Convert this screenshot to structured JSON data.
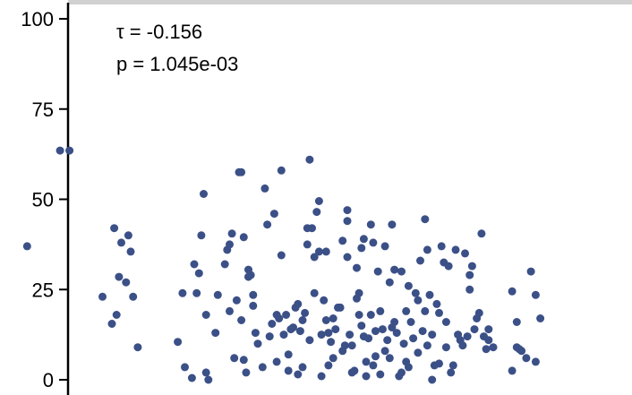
{
  "chart_data": {
    "type": "scatter",
    "title": "",
    "xlabel": "",
    "ylabel": "",
    "ylim": [
      0,
      100
    ],
    "yticks": [
      0,
      25,
      50,
      75,
      100
    ],
    "grid": false,
    "point_color": "#3b5087",
    "annotations": [
      "τ = -0.156",
      "p = 1.045e-03"
    ],
    "points": [
      [
        5,
        37
      ],
      [
        12,
        63.5
      ],
      [
        14,
        63.5
      ],
      [
        21,
        23
      ],
      [
        23,
        15.5
      ],
      [
        23.5,
        42
      ],
      [
        24,
        18
      ],
      [
        24.5,
        28.5
      ],
      [
        25,
        38
      ],
      [
        26,
        27
      ],
      [
        26.5,
        40
      ],
      [
        27,
        35.5
      ],
      [
        27.5,
        23
      ],
      [
        28.5,
        9
      ],
      [
        37,
        10.5
      ],
      [
        38,
        24
      ],
      [
        38.5,
        3.5
      ],
      [
        40,
        0.5
      ],
      [
        40.5,
        32
      ],
      [
        41,
        24
      ],
      [
        41.5,
        29.5
      ],
      [
        42,
        40
      ],
      [
        42.5,
        51.5
      ],
      [
        43,
        18
      ],
      [
        43,
        2
      ],
      [
        43.5,
        0
      ],
      [
        45,
        13
      ],
      [
        45.5,
        23.5
      ],
      [
        47,
        32
      ],
      [
        47.5,
        36
      ],
      [
        48,
        37.5
      ],
      [
        48.5,
        40.5
      ],
      [
        48,
        19
      ],
      [
        49,
        6
      ],
      [
        49.5,
        22
      ],
      [
        50,
        57.5
      ],
      [
        50.5,
        57.5
      ],
      [
        50.5,
        16.5
      ],
      [
        51,
        39.5
      ],
      [
        51,
        5.5
      ],
      [
        51.5,
        2
      ],
      [
        52,
        30.5
      ],
      [
        52,
        28.5
      ],
      [
        52.5,
        29
      ],
      [
        53,
        20.5
      ],
      [
        53,
        23.5
      ],
      [
        53.5,
        13
      ],
      [
        54,
        10
      ],
      [
        55,
        3.5
      ],
      [
        55.5,
        53
      ],
      [
        56,
        43
      ],
      [
        56.5,
        12
      ],
      [
        57,
        15.5
      ],
      [
        57.5,
        46
      ],
      [
        58,
        5
      ],
      [
        58,
        18
      ],
      [
        58.5,
        17
      ],
      [
        59,
        34.5
      ],
      [
        59,
        58
      ],
      [
        59.5,
        12.5
      ],
      [
        60,
        18
      ],
      [
        60.5,
        7
      ],
      [
        60.5,
        2.5
      ],
      [
        61,
        14
      ],
      [
        61.5,
        14.5
      ],
      [
        62,
        20
      ],
      [
        62.5,
        21
      ],
      [
        62.5,
        1.5
      ],
      [
        63,
        13.5
      ],
      [
        63.5,
        16.5
      ],
      [
        63.5,
        3.5
      ],
      [
        64,
        18.5
      ],
      [
        64.5,
        42
      ],
      [
        64.5,
        37.5
      ],
      [
        65,
        61
      ],
      [
        65,
        11
      ],
      [
        65.5,
        42
      ],
      [
        66,
        34
      ],
      [
        66,
        24
      ],
      [
        66.5,
        46.5
      ],
      [
        67,
        49.5
      ],
      [
        67,
        35.5
      ],
      [
        67.5,
        12.5
      ],
      [
        67.5,
        1
      ],
      [
        68,
        22
      ],
      [
        68.5,
        35.5
      ],
      [
        68.5,
        16.5
      ],
      [
        69,
        13
      ],
      [
        69,
        4
      ],
      [
        69.5,
        10.5
      ],
      [
        70,
        17
      ],
      [
        70,
        6
      ],
      [
        70.5,
        14
      ],
      [
        71,
        20
      ],
      [
        71.5,
        20
      ],
      [
        72,
        38.5
      ],
      [
        72,
        8
      ],
      [
        72.5,
        9.5
      ],
      [
        73,
        47
      ],
      [
        73,
        44
      ],
      [
        73,
        34
      ],
      [
        73.5,
        12.5
      ],
      [
        74,
        9.5
      ],
      [
        74,
        2
      ],
      [
        74.5,
        2.5
      ],
      [
        75,
        31
      ],
      [
        75,
        22.5
      ],
      [
        75.5,
        24
      ],
      [
        75.5,
        18
      ],
      [
        76,
        36.5
      ],
      [
        76,
        15
      ],
      [
        76.5,
        39
      ],
      [
        76.5,
        12
      ],
      [
        77,
        5
      ],
      [
        77,
        1
      ],
      [
        77.5,
        11.5
      ],
      [
        78,
        43
      ],
      [
        78,
        18
      ],
      [
        78.5,
        38
      ],
      [
        78.5,
        4
      ],
      [
        79,
        13.5
      ],
      [
        79,
        6.5
      ],
      [
        79.5,
        30
      ],
      [
        80,
        19
      ],
      [
        80,
        1.5
      ],
      [
        80.5,
        14
      ],
      [
        81,
        37
      ],
      [
        81,
        8
      ],
      [
        81.5,
        11
      ],
      [
        82,
        27
      ],
      [
        82,
        6
      ],
      [
        82.5,
        43
      ],
      [
        82.5,
        14.5
      ],
      [
        83,
        30.5
      ],
      [
        83,
        16
      ],
      [
        83.5,
        13
      ],
      [
        84,
        1
      ],
      [
        84.5,
        30
      ],
      [
        84.5,
        2
      ],
      [
        85,
        10
      ],
      [
        85.5,
        19
      ],
      [
        85.5,
        5
      ],
      [
        86,
        26
      ],
      [
        86,
        3.5
      ],
      [
        86.5,
        16
      ],
      [
        87,
        11.5
      ],
      [
        87.5,
        24
      ],
      [
        88,
        22
      ],
      [
        88,
        7.5
      ],
      [
        88.5,
        33
      ],
      [
        89,
        13.5
      ],
      [
        89.5,
        44.5
      ],
      [
        89.5,
        19
      ],
      [
        90,
        36
      ],
      [
        90,
        9.5
      ],
      [
        90.5,
        23.5
      ],
      [
        91,
        12.5
      ],
      [
        91,
        0
      ],
      [
        91.5,
        4
      ],
      [
        92,
        21
      ],
      [
        92.5,
        18.5
      ],
      [
        92.5,
        4.5
      ],
      [
        93,
        37
      ],
      [
        93.5,
        32.5
      ],
      [
        94,
        9
      ],
      [
        94,
        16
      ],
      [
        94.5,
        31.5
      ],
      [
        95,
        2
      ],
      [
        95.5,
        4
      ],
      [
        96,
        36
      ],
      [
        96.5,
        12.5
      ],
      [
        97,
        11
      ],
      [
        97.5,
        9.5
      ],
      [
        98,
        35
      ],
      [
        98.5,
        12
      ],
      [
        99,
        25
      ],
      [
        99,
        29
      ],
      [
        99.5,
        31.5
      ],
      [
        100,
        14
      ],
      [
        100.5,
        17
      ],
      [
        101,
        18.5
      ],
      [
        101.5,
        40.5
      ],
      [
        102,
        12
      ],
      [
        102.5,
        8.5
      ],
      [
        103,
        11
      ],
      [
        103,
        14
      ],
      [
        104,
        9
      ],
      [
        108,
        24.5
      ],
      [
        108,
        2.5
      ],
      [
        109,
        16
      ],
      [
        109,
        9
      ],
      [
        109.5,
        8.5
      ],
      [
        110,
        8
      ],
      [
        111,
        6
      ],
      [
        112,
        30
      ],
      [
        113,
        23.5
      ],
      [
        113,
        5
      ],
      [
        114,
        17
      ]
    ]
  }
}
